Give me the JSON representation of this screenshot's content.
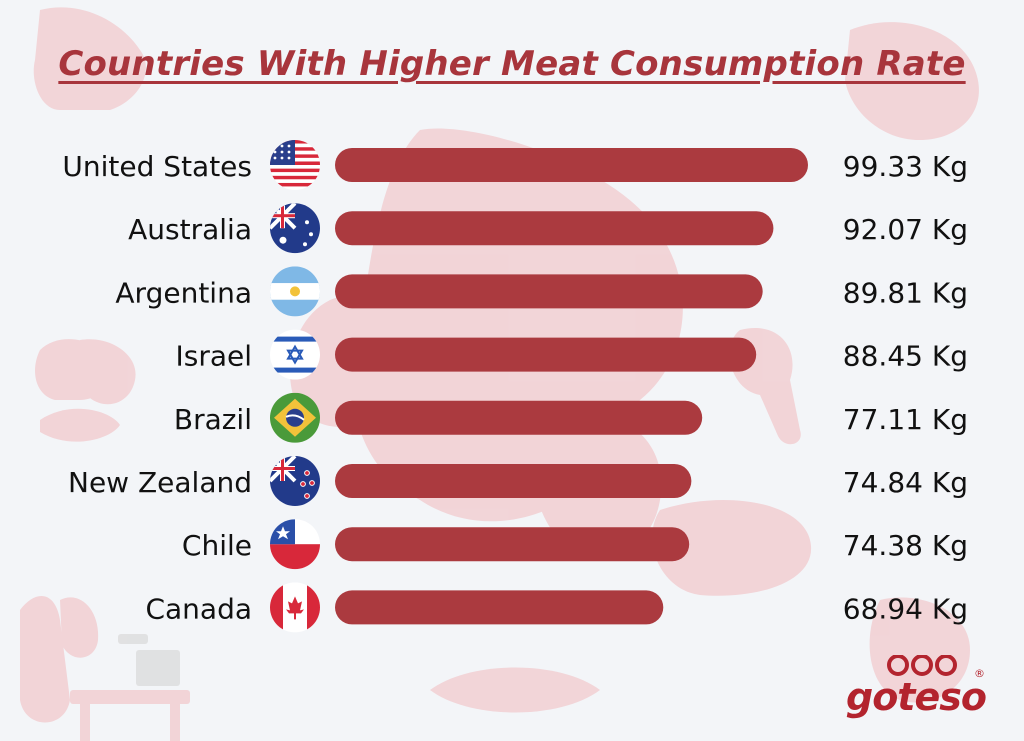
{
  "chart_data": {
    "type": "bar",
    "orientation": "horizontal",
    "title": "Countries With Higher Meat Consumption Rate",
    "unit": "Kg",
    "categories": [
      "United States",
      "Australia",
      "Argentina",
      "Israel",
      "Brazil",
      "New Zealand",
      "Chile",
      "Canada"
    ],
    "values": [
      99.33,
      92.07,
      89.81,
      88.45,
      77.11,
      74.84,
      74.38,
      68.94
    ],
    "value_labels": [
      "99.33 Kg",
      "92.07 Kg",
      "89.81 Kg",
      "88.45 Kg",
      "77.11 Kg",
      "74.84 Kg",
      "74.38 Kg",
      "68.94 Kg"
    ],
    "flag_icons": [
      "us-flag-icon",
      "australia-flag-icon",
      "argentina-flag-icon",
      "israel-flag-icon",
      "brazil-flag-icon",
      "new-zealand-flag-icon",
      "chile-flag-icon",
      "canada-flag-icon"
    ],
    "bar_color": "#ab3a3f",
    "grid": false,
    "legend": "none"
  },
  "colors": {
    "title": "#a8353c",
    "background": "#f3f5f8",
    "brand": "#b3242e"
  },
  "brand": {
    "name": "goteso",
    "registered_mark": "®"
  }
}
